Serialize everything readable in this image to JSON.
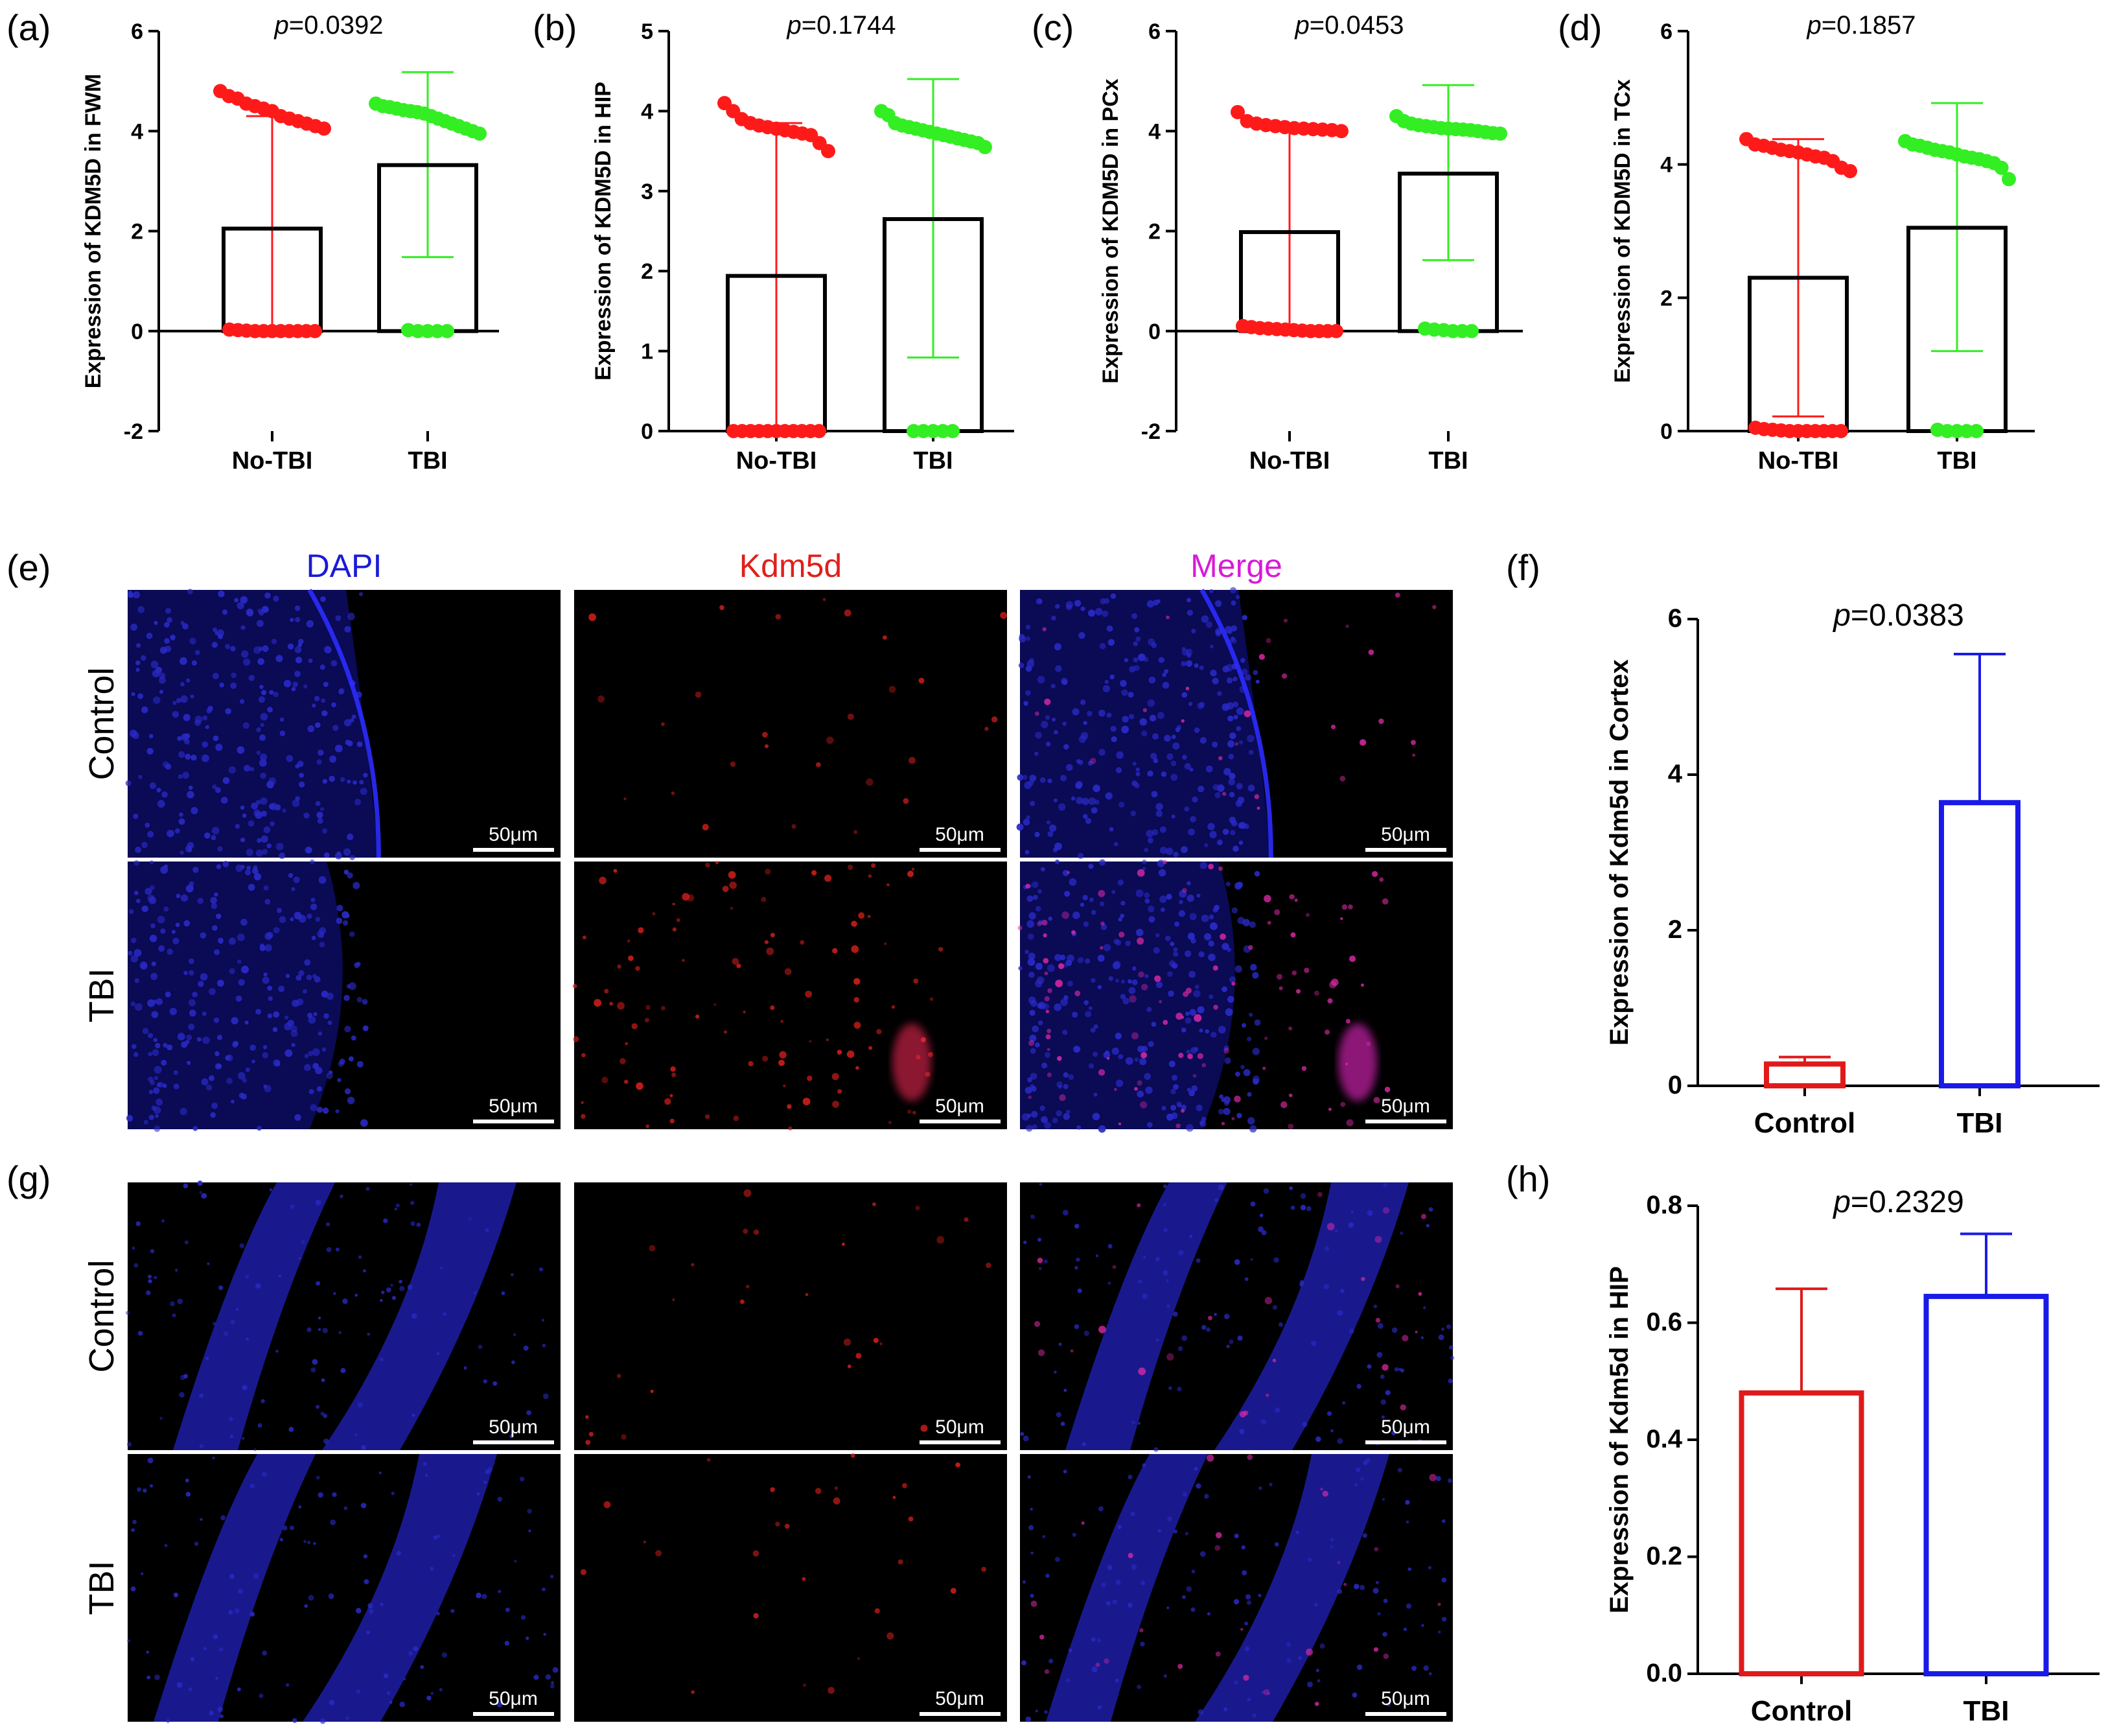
{
  "panels": {
    "a": "(a)",
    "b": "(b)",
    "c": "(c)",
    "d": "(d)",
    "e": "(e)",
    "f": "(f)",
    "g": "(g)",
    "h": "(h)"
  },
  "micrograph": {
    "columns": [
      "DAPI",
      "Kdm5d",
      "Merge"
    ],
    "rows": [
      "Control",
      "TBI"
    ],
    "scale_bar": "50μm",
    "colors": {
      "dapi": "#1a1ad8",
      "kdm5d": "#e0201c",
      "merge": "#d81ad8",
      "background": "#000000"
    }
  },
  "colors": {
    "red_points": "#ff1a1a",
    "green_points": "#33ee22",
    "control_bar": "#e01a1a",
    "tbi_bar": "#1a1ae8"
  },
  "chart_data": [
    {
      "id": "a",
      "type": "bar",
      "title": "",
      "pvalue": "p=0.0392",
      "ylabel": "Expression of KDM5D in FWM",
      "categories": [
        "No-TBI",
        "TBI"
      ],
      "ylim": [
        -2,
        6
      ],
      "yticks": [
        -2,
        0,
        2,
        4,
        6
      ],
      "values": [
        2.05,
        3.32
      ],
      "error_low": [
        0,
        1.48
      ],
      "error_high": [
        4.3,
        5.18
      ],
      "points": [
        [
          4.8,
          4.7,
          4.65,
          4.55,
          4.5,
          4.45,
          4.4,
          4.3,
          4.25,
          4.2,
          4.15,
          4.1,
          4.05,
          0.03,
          0.02,
          0.01,
          0.0,
          0.0,
          0.0,
          0.0,
          0.0,
          0.0,
          0.0,
          0.0
        ],
        [
          4.55,
          4.5,
          4.48,
          4.45,
          4.42,
          4.4,
          4.38,
          4.35,
          4.3,
          4.25,
          4.2,
          4.15,
          4.1,
          4.05,
          4.0,
          3.95,
          0.02,
          0.0,
          0.0,
          0.0,
          0.0
        ]
      ]
    },
    {
      "id": "b",
      "type": "bar",
      "title": "",
      "pvalue": "p=0.1744",
      "ylabel": "Expression of KDM5D in HIP",
      "categories": [
        "No-TBI",
        "TBI"
      ],
      "ylim": [
        0,
        5
      ],
      "yticks": [
        0,
        1,
        2,
        3,
        4,
        5
      ],
      "values": [
        1.94,
        2.65
      ],
      "error_low": [
        0,
        0.92
      ],
      "error_high": [
        3.85,
        4.4
      ],
      "points": [
        [
          4.1,
          4.0,
          3.9,
          3.85,
          3.82,
          3.8,
          3.78,
          3.76,
          3.74,
          3.72,
          3.7,
          3.6,
          3.5,
          0.0,
          0.0,
          0.0,
          0.0,
          0.0,
          0.0,
          0.0,
          0.0,
          0.0,
          0.0,
          0.0
        ],
        [
          4.0,
          3.95,
          3.85,
          3.82,
          3.8,
          3.78,
          3.76,
          3.74,
          3.72,
          3.7,
          3.68,
          3.66,
          3.64,
          3.62,
          3.6,
          3.55,
          0.0,
          0.0,
          0.0,
          0.0,
          0.0
        ]
      ]
    },
    {
      "id": "c",
      "type": "bar",
      "title": "",
      "pvalue": "p=0.0453",
      "ylabel": "Expression of KDM5D in PCx",
      "categories": [
        "No-TBI",
        "TBI"
      ],
      "ylim": [
        -2,
        6
      ],
      "yticks": [
        -2,
        0,
        2,
        4,
        6
      ],
      "values": [
        1.98,
        3.15
      ],
      "error_low": [
        0,
        1.42
      ],
      "error_high": [
        4.1,
        4.92
      ],
      "points": [
        [
          4.38,
          4.2,
          4.15,
          4.12,
          4.1,
          4.08,
          4.06,
          4.05,
          4.04,
          4.03,
          4.02,
          4.0,
          0.1,
          0.08,
          0.06,
          0.05,
          0.04,
          0.03,
          0.02,
          0.01,
          0.0,
          0.0,
          0.0,
          0.0
        ],
        [
          4.3,
          4.2,
          4.15,
          4.12,
          4.1,
          4.08,
          4.06,
          4.05,
          4.04,
          4.03,
          4.02,
          4.0,
          3.98,
          3.96,
          3.95,
          0.05,
          0.03,
          0.02,
          0.0,
          0.0,
          0.0
        ]
      ]
    },
    {
      "id": "d",
      "type": "bar",
      "title": "",
      "pvalue": "p=0.1857",
      "ylabel": "Expression of KDM5D in TCx",
      "categories": [
        "No-TBI",
        "TBI"
      ],
      "ylim": [
        0,
        6
      ],
      "yticks": [
        0,
        2,
        4,
        6
      ],
      "values": [
        2.3,
        3.05
      ],
      "error_low": [
        0.22,
        1.2
      ],
      "error_high": [
        4.38,
        4.92
      ],
      "points": [
        [
          4.38,
          4.3,
          4.28,
          4.25,
          4.22,
          4.2,
          4.18,
          4.15,
          4.12,
          4.1,
          4.05,
          3.95,
          3.9,
          0.05,
          0.03,
          0.02,
          0.01,
          0.0,
          0.0,
          0.0,
          0.0,
          0.0,
          0.0,
          0.0
        ],
        [
          4.35,
          4.3,
          4.28,
          4.25,
          4.22,
          4.2,
          4.18,
          4.15,
          4.12,
          4.1,
          4.08,
          4.05,
          4.02,
          3.95,
          3.78,
          0.02,
          0.0,
          0.0,
          0.0,
          0.0
        ]
      ]
    },
    {
      "id": "f",
      "type": "bar",
      "title": "",
      "pvalue": "p=0.0383",
      "ylabel": "Expression of Kdm5d in Cortex",
      "categories": [
        "Control",
        "TBI"
      ],
      "ylim": [
        0,
        6
      ],
      "yticks": [
        0,
        2,
        4,
        6
      ],
      "values": [
        0.28,
        3.64
      ],
      "error_high": [
        0.37,
        5.55
      ]
    },
    {
      "id": "h",
      "type": "bar",
      "title": "",
      "pvalue": "p=0.2329",
      "ylabel": "Expression of Kdm5d in HIP",
      "categories": [
        "Control",
        "TBI"
      ],
      "ylim": [
        0,
        0.8
      ],
      "yticks": [
        "0.0",
        "0.2",
        "0.4",
        "0.6",
        "0.8"
      ],
      "values": [
        0.48,
        0.645
      ],
      "error_high": [
        0.658,
        0.752
      ]
    }
  ]
}
